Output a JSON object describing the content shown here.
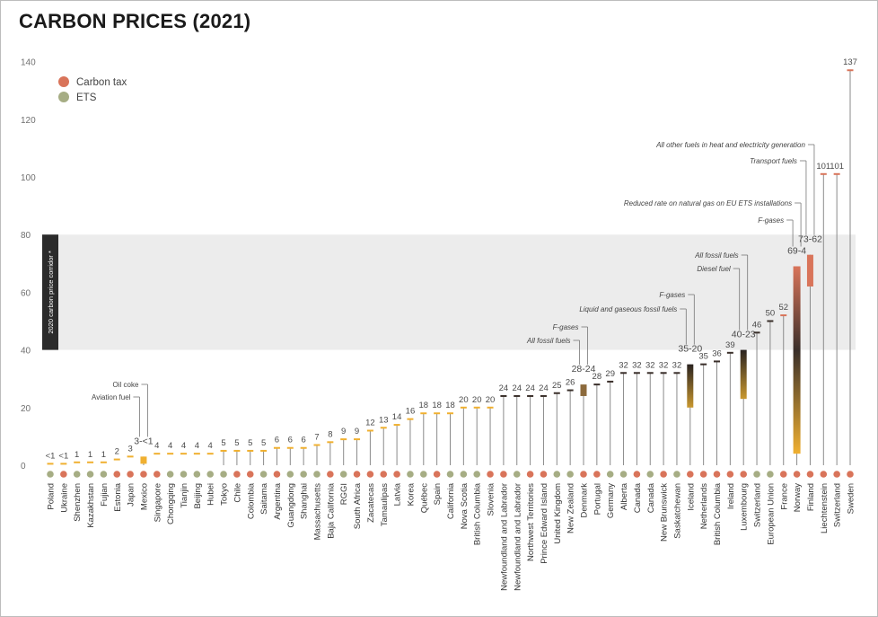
{
  "title": "CARBON PRICES (2021)",
  "colors": {
    "tax": "#d9745a",
    "ets": "#a6ad84",
    "stem": "#8a8a8a",
    "barDark": "#3a2f2a",
    "corridor": "#ececec",
    "corridorLabel": "#2b2b2b"
  },
  "legend": {
    "tax": "Carbon tax",
    "ets": "ETS"
  },
  "corridor_label": "2020 carbon price corridor *",
  "chart_data": {
    "type": "bar",
    "title": "CARBON PRICES (2021)",
    "ylim": [
      0,
      140
    ],
    "yticks": [
      0,
      20,
      40,
      60,
      80,
      100,
      120,
      140
    ],
    "corridor": [
      40,
      80
    ],
    "series": [
      {
        "name": "Poland",
        "kind": "ets",
        "value": 0.5,
        "label": "<1"
      },
      {
        "name": "Ukraine",
        "kind": "tax",
        "value": 0.5,
        "label": "<1"
      },
      {
        "name": "Shenzhen",
        "kind": "ets",
        "value": 1,
        "label": "1"
      },
      {
        "name": "Kazakhstan",
        "kind": "ets",
        "value": 1,
        "label": "1"
      },
      {
        "name": "Fujian",
        "kind": "ets",
        "value": 1,
        "label": "1"
      },
      {
        "name": "Estonia",
        "kind": "tax",
        "value": 2,
        "label": "2"
      },
      {
        "name": "Japan",
        "kind": "tax",
        "value": 3,
        "label": "3"
      },
      {
        "name": "Mexico",
        "kind": "tax",
        "low": 0.5,
        "high": 3,
        "label": "3-<1"
      },
      {
        "name": "Singapore",
        "kind": "tax",
        "value": 4,
        "label": "4"
      },
      {
        "name": "Chongqing",
        "kind": "ets",
        "value": 4,
        "label": "4"
      },
      {
        "name": "Tianjin",
        "kind": "ets",
        "value": 4,
        "label": "4"
      },
      {
        "name": "Beijing",
        "kind": "ets",
        "value": 4,
        "label": "4"
      },
      {
        "name": "Hubei",
        "kind": "ets",
        "value": 4,
        "label": "4"
      },
      {
        "name": "Tokyo",
        "kind": "ets",
        "value": 5,
        "label": "5"
      },
      {
        "name": "Chile",
        "kind": "tax",
        "value": 5,
        "label": "5"
      },
      {
        "name": "Colombia",
        "kind": "tax",
        "value": 5,
        "label": "5"
      },
      {
        "name": "Saitama",
        "kind": "ets",
        "value": 5,
        "label": "5"
      },
      {
        "name": "Argentina",
        "kind": "tax",
        "value": 6,
        "label": "6"
      },
      {
        "name": "Guangdong",
        "kind": "ets",
        "value": 6,
        "label": "6"
      },
      {
        "name": "Shanghai",
        "kind": "ets",
        "value": 6,
        "label": "6"
      },
      {
        "name": "Massachusetts",
        "kind": "ets",
        "value": 7,
        "label": "7"
      },
      {
        "name": "Baja California",
        "kind": "tax",
        "value": 8,
        "label": "8"
      },
      {
        "name": "RGGI",
        "kind": "ets",
        "value": 9,
        "label": "9"
      },
      {
        "name": "South Africa",
        "kind": "tax",
        "value": 9,
        "label": "9"
      },
      {
        "name": "Zacatecas",
        "kind": "tax",
        "value": 12,
        "label": "12"
      },
      {
        "name": "Tamaulipas",
        "kind": "tax",
        "value": 13,
        "label": "13"
      },
      {
        "name": "Latvia",
        "kind": "tax",
        "value": 14,
        "label": "14"
      },
      {
        "name": "Korea",
        "kind": "ets",
        "value": 16,
        "label": "16"
      },
      {
        "name": "Québec",
        "kind": "ets",
        "value": 18,
        "label": "18"
      },
      {
        "name": "Spain",
        "kind": "tax",
        "value": 18,
        "label": "18"
      },
      {
        "name": "California",
        "kind": "ets",
        "value": 18,
        "label": "18"
      },
      {
        "name": "Nova Scotia",
        "kind": "ets",
        "value": 20,
        "label": "20"
      },
      {
        "name": "British Columbia",
        "kind": "ets",
        "value": 20,
        "label": "20"
      },
      {
        "name": "Slovenia",
        "kind": "tax",
        "value": 20,
        "label": "20"
      },
      {
        "name": "Newfoundland and Labrador",
        "kind": "tax",
        "value": 24,
        "label": "24"
      },
      {
        "name": "Newfoundland and Labrador",
        "kind": "ets",
        "value": 24,
        "label": "24"
      },
      {
        "name": "Northwest Territories",
        "kind": "tax",
        "value": 24,
        "label": "24"
      },
      {
        "name": "Prince Edward Island",
        "kind": "tax",
        "value": 24,
        "label": "24"
      },
      {
        "name": "United Kingdom",
        "kind": "ets",
        "value": 25,
        "label": "25"
      },
      {
        "name": "New Zealand",
        "kind": "ets",
        "value": 26,
        "label": "26"
      },
      {
        "name": "Denmark",
        "kind": "tax",
        "low": 24,
        "high": 28,
        "label": "28-24"
      },
      {
        "name": "Portugal",
        "kind": "tax",
        "value": 28,
        "label": "28"
      },
      {
        "name": "Germany",
        "kind": "ets",
        "value": 29,
        "label": "29"
      },
      {
        "name": "Alberta",
        "kind": "ets",
        "value": 32,
        "label": "32"
      },
      {
        "name": "Canada",
        "kind": "tax",
        "value": 32,
        "label": "32"
      },
      {
        "name": "Canada",
        "kind": "ets",
        "value": 32,
        "label": "32"
      },
      {
        "name": "New Brunswick",
        "kind": "tax",
        "value": 32,
        "label": "32"
      },
      {
        "name": "Saskatchewan",
        "kind": "ets",
        "value": 32,
        "label": "32"
      },
      {
        "name": "Iceland",
        "kind": "tax",
        "low": 20,
        "high": 35,
        "label": "35-20"
      },
      {
        "name": "Netherlands",
        "kind": "tax",
        "value": 35,
        "label": "35"
      },
      {
        "name": "British Columbia",
        "kind": "tax",
        "value": 36,
        "label": "36"
      },
      {
        "name": "Ireland",
        "kind": "tax",
        "value": 39,
        "label": "39"
      },
      {
        "name": "Luxembourg",
        "kind": "tax",
        "low": 23,
        "high": 40,
        "label": "40-23"
      },
      {
        "name": "Switzerland",
        "kind": "ets",
        "value": 46,
        "label": "46"
      },
      {
        "name": "European Union",
        "kind": "ets",
        "value": 50,
        "label": "50"
      },
      {
        "name": "France",
        "kind": "tax",
        "value": 52,
        "label": "52"
      },
      {
        "name": "Norway",
        "kind": "tax",
        "low": 4,
        "high": 69,
        "label": "69-4"
      },
      {
        "name": "Finland",
        "kind": "tax",
        "low": 62,
        "high": 73,
        "label": "73-62"
      },
      {
        "name": "Liechtenstein",
        "kind": "tax",
        "value": 101,
        "label": "101"
      },
      {
        "name": "Switzerland",
        "kind": "tax",
        "value": 101,
        "label": "101"
      },
      {
        "name": "Sweden",
        "kind": "tax",
        "value": 137,
        "label": "137"
      }
    ],
    "annotations": [
      {
        "text": "Oil coke",
        "target": 7,
        "level": 4,
        "style": "upright"
      },
      {
        "text": "Aviation fuel",
        "target": 7,
        "level": 3,
        "style": "upright"
      },
      {
        "text": "F-gases",
        "target": 40,
        "level": 4,
        "style": "italic"
      },
      {
        "text": "All fossil fuels",
        "target": 40,
        "level": 3,
        "style": "italic"
      },
      {
        "text": "F-gases",
        "target": 48,
        "level": 4,
        "style": "italic"
      },
      {
        "text": "Liquid and gaseous fossil fuels",
        "target": 48,
        "level": 3,
        "style": "italic"
      },
      {
        "text": "All fossil fuels",
        "target": 52,
        "level": 4,
        "style": "italic"
      },
      {
        "text": "Diesel fuel",
        "target": 52,
        "level": 3,
        "style": "italic"
      },
      {
        "text": "Reduced rate on natural gas on EU ETS installations",
        "target": 56,
        "level": 3,
        "style": "italic"
      },
      {
        "text": "F-gases",
        "target": 56,
        "level": 4,
        "style": "italic"
      },
      {
        "text": "All other fuels in heat and electricity generation",
        "target": 57,
        "level": 4,
        "style": "italic"
      },
      {
        "text": "Transport fuels",
        "target": 57,
        "level": 3,
        "style": "italic"
      }
    ]
  }
}
